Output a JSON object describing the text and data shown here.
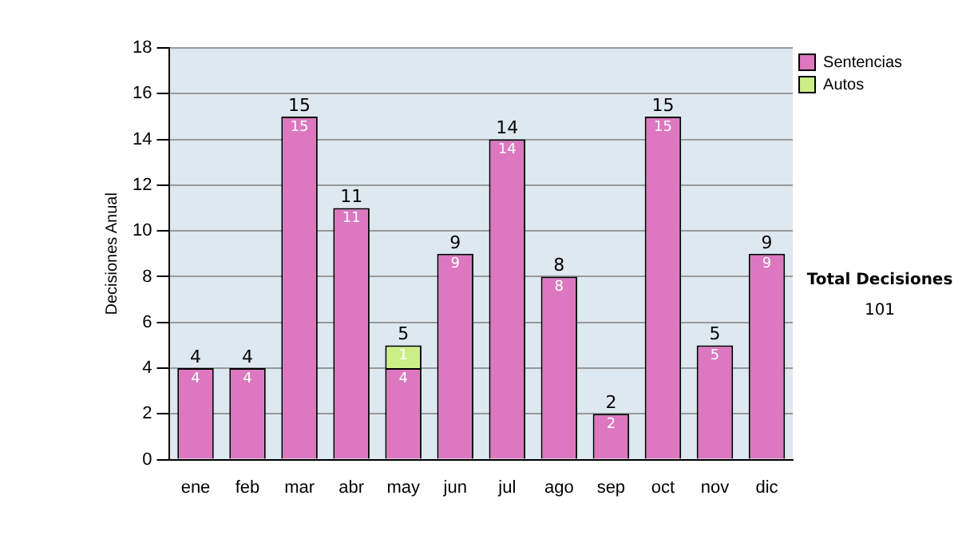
{
  "chart_data": {
    "type": "bar",
    "stacked": true,
    "ylabel": "Decisiones Anual",
    "categories": [
      "ene",
      "feb",
      "mar",
      "abr",
      "may",
      "jun",
      "jul",
      "ago",
      "sep",
      "oct",
      "nov",
      "dic"
    ],
    "series": [
      {
        "name": "Sentencias",
        "color": "#dd77c0",
        "values": [
          4,
          4,
          15,
          11,
          4,
          9,
          14,
          8,
          2,
          15,
          5,
          9
        ]
      },
      {
        "name": "Autos",
        "color": "#ccee88",
        "values": [
          null,
          null,
          null,
          null,
          1,
          null,
          null,
          null,
          null,
          null,
          null,
          null
        ]
      }
    ],
    "totals": [
      "4",
      "4",
      "15",
      "11",
      "5",
      "9",
      "14",
      "8",
      "2",
      "15",
      "5",
      "9"
    ],
    "data_labels": true,
    "ylim": [
      0,
      18
    ],
    "yticks": [
      0,
      2,
      4,
      6,
      8,
      10,
      12,
      14,
      16,
      18
    ],
    "grid": "y",
    "legend": "right",
    "annotations": [
      "Total Decisiones",
      "101"
    ]
  }
}
